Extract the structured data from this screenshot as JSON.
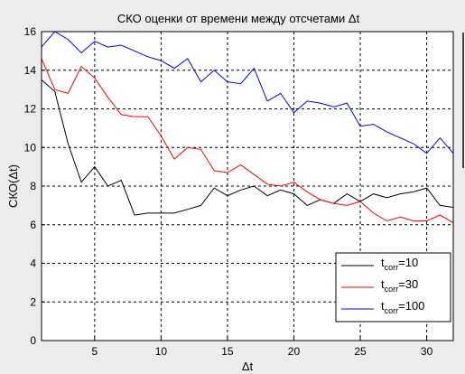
{
  "chart_data": {
    "type": "line",
    "title": "СКО оценки от времени между отсчетами Δt",
    "xlabel": "Δt",
    "ylabel": "СКО(Δt)",
    "xlim": [
      1,
      32
    ],
    "ylim": [
      0,
      16
    ],
    "xticks": [
      5,
      10,
      15,
      20,
      25,
      30
    ],
    "yticks": [
      0,
      2,
      4,
      6,
      8,
      10,
      12,
      14,
      16
    ],
    "grid": true,
    "legend_position": "lower-right",
    "x": [
      1,
      2,
      3,
      4,
      5,
      6,
      7,
      8,
      9,
      10,
      11,
      12,
      13,
      14,
      15,
      16,
      17,
      18,
      19,
      20,
      21,
      22,
      23,
      24,
      25,
      26,
      27,
      28,
      29,
      30,
      31,
      32
    ],
    "series": [
      {
        "name": "t_corr=10",
        "legend_main": "t",
        "legend_sub": "corr",
        "legend_tail": "=10",
        "color": "#000000",
        "values": [
          13.5,
          12.9,
          10.2,
          8.2,
          9.0,
          8.0,
          8.3,
          6.5,
          6.6,
          6.6,
          6.6,
          6.8,
          7.0,
          7.9,
          7.5,
          7.8,
          8.0,
          7.5,
          7.8,
          7.6,
          7.0,
          7.3,
          7.1,
          7.6,
          7.2,
          7.6,
          7.4,
          7.6,
          7.7,
          7.9,
          7.0,
          6.9
        ]
      },
      {
        "name": "t_corr=30",
        "legend_main": "t",
        "legend_sub": "corr",
        "legend_tail": "=30",
        "color": "#ff0000",
        "values": [
          14.6,
          13.0,
          12.8,
          14.2,
          13.6,
          12.6,
          11.7,
          11.6,
          11.6,
          10.6,
          9.4,
          10.0,
          9.9,
          8.8,
          8.7,
          9.1,
          8.6,
          8.1,
          8.0,
          8.2,
          7.7,
          7.3,
          7.1,
          7.0,
          7.2,
          6.6,
          6.2,
          6.4,
          6.2,
          6.2,
          6.5,
          6.1
        ]
      },
      {
        "name": "t_corr=100",
        "legend_main": "t",
        "legend_sub": "corr",
        "legend_tail": "=100",
        "color": "#0000ff",
        "values": [
          15.2,
          16.0,
          15.6,
          14.9,
          15.5,
          15.2,
          15.3,
          15.0,
          14.7,
          14.5,
          14.1,
          14.6,
          13.4,
          14.0,
          13.4,
          13.3,
          14.1,
          12.4,
          12.8,
          11.8,
          12.4,
          12.3,
          12.1,
          12.3,
          11.1,
          11.2,
          10.8,
          10.5,
          10.2,
          9.7,
          10.5,
          9.7
        ]
      }
    ]
  }
}
